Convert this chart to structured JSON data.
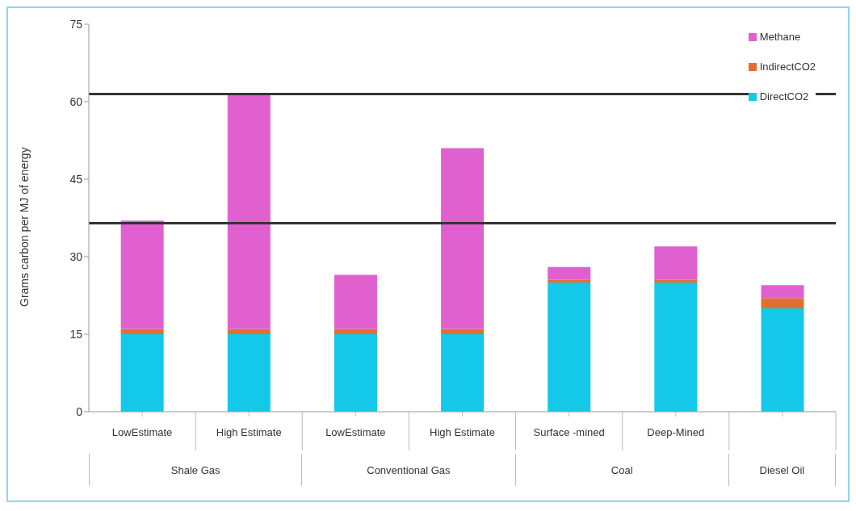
{
  "chart_data": {
    "type": "bar",
    "stacked": true,
    "ylabel": "Grams carbon per MJ of energy",
    "categories": [
      "LowEstimate",
      "High Estimate",
      "LowEstimate",
      "High Estimate",
      "Surface -mined",
      "Deep-Mined",
      null
    ],
    "annotations": [
      "Shale Gas",
      "Conventional Gas",
      "Coal",
      "Diesel Oil"
    ],
    "series": [
      {
        "name": "DirectCO2",
        "color": "#14c8ea",
        "values": [
          15,
          15,
          15,
          15,
          25,
          25,
          20
        ]
      },
      {
        "name": "IndirectCO2",
        "color": "#e07030",
        "values": [
          1,
          1,
          1,
          1,
          0.5,
          0.5,
          2
        ]
      },
      {
        "name": "Methane",
        "color": "#e060d0",
        "values": [
          21,
          45.5,
          10.5,
          35,
          2.5,
          6.5,
          2.5
        ]
      }
    ],
    "ylim": [
      0,
      75
    ],
    "yticks": [
      0,
      15,
      30,
      45,
      60,
      75
    ],
    "grid": false,
    "legend": "top right",
    "ref_lines": [
      {
        "axis": "y",
        "value": 61.5,
        "color": "#333333"
      },
      {
        "axis": "y",
        "value": 36.5,
        "color": "#333333"
      }
    ]
  }
}
